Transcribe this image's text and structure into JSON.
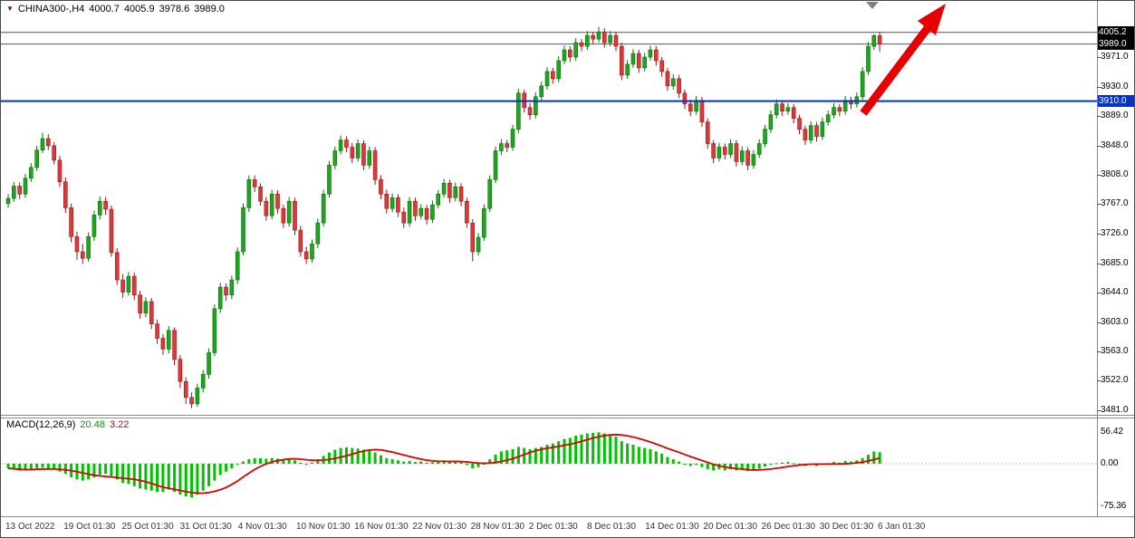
{
  "header": {
    "symbol": "CHINA300-,H4",
    "open": "4000.7",
    "high": "4005.9",
    "low": "3978.6",
    "close": "3989.0"
  },
  "price_axis": {
    "ask_badge": "4005.2",
    "bid_badge": "3989.0",
    "hline_badge": "3910.0"
  },
  "macd_panel": {
    "label": "MACD(12,26,9)",
    "main_value": "20.48",
    "signal_value": "3.22",
    "axis_labels": [
      "56.42",
      "0.00",
      "-75.36"
    ]
  },
  "colors": {
    "bull": "#1fa51f",
    "bull_border": "#0b6e0b",
    "bear": "#d93a3a",
    "bear_border": "#9e1414",
    "hline": "#0033cc",
    "price_line": "#555555",
    "macd_hist": "#00c000",
    "macd_signal": "#dd0000",
    "arrow": "#e60000",
    "badge_dark": "#000000",
    "badge_blue": "#0033cc",
    "shift_marker": "#808080"
  },
  "chart_data": {
    "type": "candlestick",
    "symbol": "CHINA300-,H4",
    "timeframe": "H4",
    "title": "CHINA300-,H4 4000.7 4005.9 3978.6 3989.0",
    "legend_position": "top-left",
    "grid": false,
    "ylim": [
      3481,
      4014
    ],
    "y_ticks": [
      "3971.0",
      "3930.0",
      "3889.0",
      "3848.0",
      "3808.0",
      "3767.0",
      "3726.0",
      "3685.0",
      "3644.0",
      "3603.0",
      "3563.0",
      "3522.0",
      "3481.0"
    ],
    "x_labels": [
      "13 Oct 2022",
      "19 Oct 01:30",
      "25 Oct 01:30",
      "31 Oct 01:30",
      "4 Nov 01:30",
      "10 Nov 01:30",
      "16 Nov 01:30",
      "22 Nov 01:30",
      "28 Nov 01:30",
      "2 Dec 01:30",
      "8 Dec 01:30",
      "14 Dec 01:30",
      "20 Dec 01:30",
      "26 Dec 01:30",
      "30 Dec 01:30",
      "6 Jan 01:30"
    ],
    "levels": {
      "ask": 4005.2,
      "bid": 3989.0,
      "trendline": 3910.0
    },
    "current_bar": {
      "open": 4000.7,
      "high": 4005.9,
      "low": 3978.6,
      "close": 3989.0
    },
    "candles_ohlc": [
      [
        3768,
        3781,
        3762,
        3775
      ],
      [
        3775,
        3798,
        3770,
        3792
      ],
      [
        3792,
        3797,
        3774,
        3781
      ],
      [
        3781,
        3809,
        3776,
        3803
      ],
      [
        3803,
        3824,
        3798,
        3818
      ],
      [
        3818,
        3848,
        3813,
        3842
      ],
      [
        3842,
        3866,
        3838,
        3858
      ],
      [
        3858,
        3864,
        3842,
        3848
      ],
      [
        3848,
        3853,
        3822,
        3828
      ],
      [
        3828,
        3834,
        3791,
        3798
      ],
      [
        3798,
        3804,
        3755,
        3762
      ],
      [
        3762,
        3768,
        3714,
        3722
      ],
      [
        3722,
        3729,
        3690,
        3701
      ],
      [
        3701,
        3712,
        3684,
        3692
      ],
      [
        3692,
        3728,
        3687,
        3722
      ],
      [
        3722,
        3758,
        3716,
        3752
      ],
      [
        3752,
        3778,
        3746,
        3771
      ],
      [
        3771,
        3777,
        3752,
        3760
      ],
      [
        3760,
        3765,
        3694,
        3700
      ],
      [
        3700,
        3706,
        3655,
        3662
      ],
      [
        3662,
        3670,
        3637,
        3645
      ],
      [
        3645,
        3673,
        3640,
        3667
      ],
      [
        3667,
        3672,
        3634,
        3641
      ],
      [
        3641,
        3647,
        3608,
        3616
      ],
      [
        3616,
        3638,
        3610,
        3632
      ],
      [
        3632,
        3637,
        3594,
        3601
      ],
      [
        3601,
        3607,
        3573,
        3581
      ],
      [
        3581,
        3587,
        3558,
        3566
      ],
      [
        3566,
        3598,
        3560,
        3592
      ],
      [
        3592,
        3596,
        3544,
        3552
      ],
      [
        3552,
        3558,
        3512,
        3521
      ],
      [
        3521,
        3527,
        3490,
        3499
      ],
      [
        3499,
        3506,
        3484,
        3490
      ],
      [
        3490,
        3518,
        3486,
        3512
      ],
      [
        3512,
        3537,
        3506,
        3531
      ],
      [
        3531,
        3567,
        3525,
        3561
      ],
      [
        3561,
        3628,
        3556,
        3622
      ],
      [
        3622,
        3658,
        3616,
        3652
      ],
      [
        3652,
        3657,
        3633,
        3641
      ],
      [
        3641,
        3668,
        3635,
        3662
      ],
      [
        3662,
        3707,
        3656,
        3701
      ],
      [
        3701,
        3768,
        3696,
        3762
      ],
      [
        3762,
        3807,
        3756,
        3801
      ],
      [
        3801,
        3807,
        3784,
        3791
      ],
      [
        3791,
        3796,
        3765,
        3771
      ],
      [
        3771,
        3777,
        3744,
        3751
      ],
      [
        3751,
        3787,
        3746,
        3781
      ],
      [
        3781,
        3786,
        3754,
        3761
      ],
      [
        3761,
        3766,
        3734,
        3741
      ],
      [
        3741,
        3777,
        3736,
        3771
      ],
      [
        3771,
        3776,
        3724,
        3731
      ],
      [
        3731,
        3737,
        3694,
        3701
      ],
      [
        3701,
        3708,
        3684,
        3691
      ],
      [
        3691,
        3718,
        3686,
        3712
      ],
      [
        3712,
        3747,
        3706,
        3741
      ],
      [
        3741,
        3787,
        3736,
        3781
      ],
      [
        3781,
        3827,
        3776,
        3821
      ],
      [
        3821,
        3847,
        3815,
        3841
      ],
      [
        3841,
        3862,
        3836,
        3856
      ],
      [
        3856,
        3861,
        3839,
        3846
      ],
      [
        3846,
        3852,
        3824,
        3831
      ],
      [
        3831,
        3857,
        3826,
        3851
      ],
      [
        3851,
        3856,
        3814,
        3821
      ],
      [
        3821,
        3847,
        3816,
        3841
      ],
      [
        3841,
        3846,
        3794,
        3801
      ],
      [
        3801,
        3807,
        3774,
        3781
      ],
      [
        3781,
        3787,
        3754,
        3761
      ],
      [
        3761,
        3782,
        3756,
        3776
      ],
      [
        3776,
        3781,
        3749,
        3756
      ],
      [
        3756,
        3762,
        3734,
        3741
      ],
      [
        3741,
        3777,
        3736,
        3771
      ],
      [
        3771,
        3776,
        3744,
        3751
      ],
      [
        3751,
        3767,
        3746,
        3761
      ],
      [
        3761,
        3766,
        3739,
        3746
      ],
      [
        3746,
        3772,
        3741,
        3766
      ],
      [
        3766,
        3787,
        3761,
        3781
      ],
      [
        3781,
        3802,
        3776,
        3796
      ],
      [
        3796,
        3801,
        3769,
        3776
      ],
      [
        3776,
        3797,
        3771,
        3791
      ],
      [
        3791,
        3796,
        3764,
        3771
      ],
      [
        3771,
        3776,
        3734,
        3741
      ],
      [
        3741,
        3746,
        3688,
        3701
      ],
      [
        3701,
        3727,
        3696,
        3721
      ],
      [
        3721,
        3767,
        3716,
        3761
      ],
      [
        3761,
        3807,
        3756,
        3801
      ],
      [
        3801,
        3847,
        3796,
        3841
      ],
      [
        3841,
        3857,
        3835,
        3851
      ],
      [
        3851,
        3856,
        3839,
        3846
      ],
      [
        3846,
        3877,
        3841,
        3871
      ],
      [
        3871,
        3927,
        3866,
        3921
      ],
      [
        3921,
        3926,
        3894,
        3901
      ],
      [
        3901,
        3907,
        3884,
        3891
      ],
      [
        3891,
        3922,
        3886,
        3916
      ],
      [
        3916,
        3937,
        3911,
        3931
      ],
      [
        3931,
        3957,
        3926,
        3951
      ],
      [
        3951,
        3956,
        3934,
        3941
      ],
      [
        3941,
        3972,
        3936,
        3966
      ],
      [
        3966,
        3987,
        3961,
        3981
      ],
      [
        3981,
        3986,
        3964,
        3971
      ],
      [
        3971,
        3997,
        3966,
        3991
      ],
      [
        3991,
        3996,
        3979,
        3986
      ],
      [
        3986,
        4007,
        3981,
        4001
      ],
      [
        4001,
        4006,
        3989,
        3996
      ],
      [
        3996,
        4013,
        3991,
        4006
      ],
      [
        4006,
        4011,
        3984,
        3991
      ],
      [
        3991,
        4007,
        3986,
        4001
      ],
      [
        4001,
        4006,
        3979,
        3986
      ],
      [
        3986,
        3991,
        3939,
        3946
      ],
      [
        3946,
        3967,
        3941,
        3961
      ],
      [
        3961,
        3982,
        3956,
        3976
      ],
      [
        3976,
        3981,
        3949,
        3956
      ],
      [
        3956,
        3977,
        3951,
        3971
      ],
      [
        3971,
        3987,
        3966,
        3981
      ],
      [
        3981,
        3986,
        3959,
        3966
      ],
      [
        3966,
        3971,
        3944,
        3951
      ],
      [
        3951,
        3956,
        3924,
        3931
      ],
      [
        3931,
        3947,
        3926,
        3941
      ],
      [
        3941,
        3946,
        3914,
        3921
      ],
      [
        3921,
        3926,
        3899,
        3906
      ],
      [
        3906,
        3912,
        3889,
        3896
      ],
      [
        3896,
        3917,
        3891,
        3911
      ],
      [
        3911,
        3916,
        3874,
        3881
      ],
      [
        3881,
        3886,
        3844,
        3851
      ],
      [
        3851,
        3856,
        3824,
        3831
      ],
      [
        3831,
        3852,
        3826,
        3846
      ],
      [
        3846,
        3851,
        3829,
        3836
      ],
      [
        3836,
        3857,
        3831,
        3851
      ],
      [
        3851,
        3856,
        3819,
        3826
      ],
      [
        3826,
        3847,
        3821,
        3841
      ],
      [
        3841,
        3846,
        3814,
        3821
      ],
      [
        3821,
        3842,
        3816,
        3836
      ],
      [
        3836,
        3857,
        3831,
        3851
      ],
      [
        3851,
        3877,
        3846,
        3871
      ],
      [
        3871,
        3897,
        3866,
        3891
      ],
      [
        3891,
        3912,
        3886,
        3906
      ],
      [
        3906,
        3911,
        3889,
        3896
      ],
      [
        3896,
        3907,
        3891,
        3901
      ],
      [
        3901,
        3906,
        3879,
        3886
      ],
      [
        3886,
        3891,
        3864,
        3871
      ],
      [
        3871,
        3876,
        3849,
        3856
      ],
      [
        3856,
        3882,
        3851,
        3876
      ],
      [
        3876,
        3881,
        3854,
        3861
      ],
      [
        3861,
        3887,
        3856,
        3881
      ],
      [
        3881,
        3897,
        3876,
        3891
      ],
      [
        3891,
        3907,
        3886,
        3901
      ],
      [
        3901,
        3906,
        3889,
        3896
      ],
      [
        3896,
        3917,
        3891,
        3911
      ],
      [
        3911,
        3916,
        3899,
        3906
      ],
      [
        3906,
        3922,
        3901,
        3916
      ],
      [
        3916,
        3957,
        3911,
        3951
      ],
      [
        3951,
        3992,
        3946,
        3986
      ],
      [
        3986,
        4003,
        3981,
        4000.7
      ],
      [
        4000.7,
        4005.9,
        3978.6,
        3989.0
      ]
    ],
    "macd": {
      "params": "12,26,9",
      "main": 20.48,
      "signal": 3.22,
      "axis": [
        "56.42",
        "0.00",
        "-75.36"
      ],
      "histogram": [
        -8,
        -10,
        -12,
        -12,
        -10,
        -8,
        -7,
        -8,
        -10,
        -14,
        -18,
        -24,
        -28,
        -30,
        -28,
        -24,
        -20,
        -18,
        -22,
        -28,
        -34,
        -36,
        -40,
        -44,
        -46,
        -48,
        -50,
        -50,
        -46,
        -50,
        -55,
        -58,
        -60,
        -55,
        -48,
        -40,
        -30,
        -20,
        -14,
        -8,
        -2,
        4,
        8,
        10,
        10,
        9,
        10,
        9,
        8,
        9,
        6,
        2,
        0,
        2,
        8,
        14,
        20,
        25,
        28,
        29,
        28,
        27,
        25,
        24,
        20,
        15,
        10,
        8,
        6,
        4,
        5,
        3,
        4,
        2,
        3,
        5,
        6,
        4,
        5,
        3,
        -2,
        -8,
        -6,
        0,
        8,
        16,
        22,
        24,
        26,
        30,
        28,
        26,
        28,
        30,
        34,
        36,
        40,
        44,
        46,
        50,
        52,
        54,
        55,
        56,
        54,
        52,
        48,
        40,
        36,
        34,
        30,
        28,
        26,
        22,
        18,
        12,
        8,
        4,
        0,
        -4,
        -2,
        -6,
        -10,
        -12,
        -10,
        -12,
        -10,
        -12,
        -11,
        -13,
        -11,
        -9,
        -5,
        -2,
        1,
        2,
        3,
        1,
        -1,
        -4,
        -2,
        -4,
        -1,
        1,
        3,
        2,
        5,
        4,
        6,
        10,
        16,
        22,
        20.48
      ]
    }
  }
}
